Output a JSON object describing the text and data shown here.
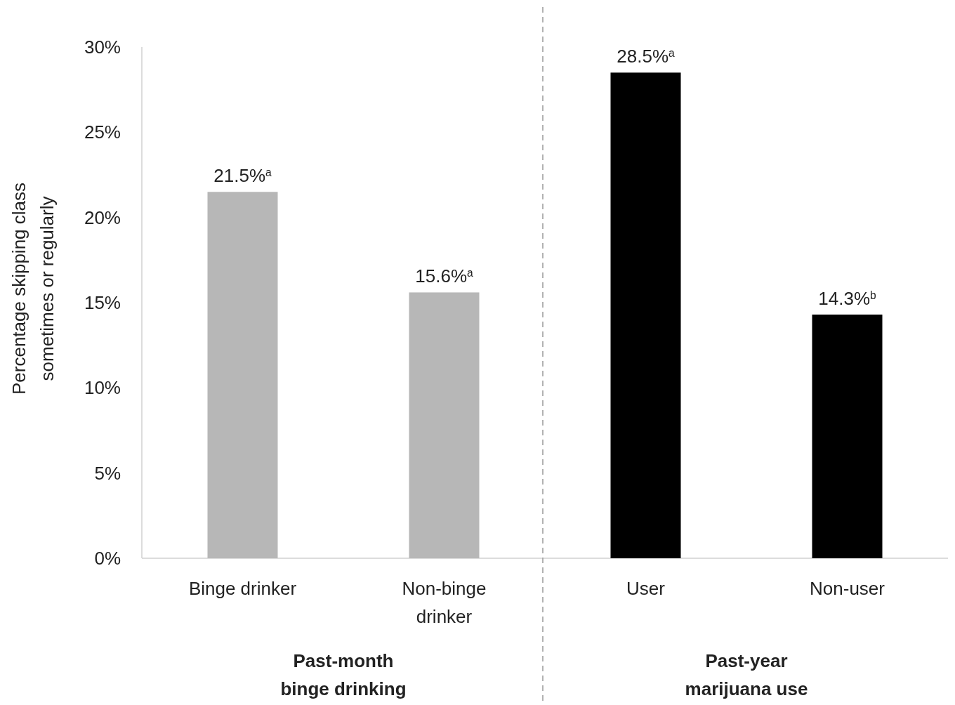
{
  "chart_data": {
    "type": "bar",
    "ylabel": "Percentage skipping class sometimes or regularly",
    "categories": [
      "Binge drinker",
      "Non-binge drinker",
      "User",
      "Non-user"
    ],
    "values": [
      21.5,
      15.6,
      28.5,
      14.3
    ],
    "colors": [
      "#b7b7b7",
      "#b7b7b7",
      "#000000",
      "#000000"
    ],
    "value_labels": [
      "21.5%$^{a}$",
      "15.6%$^{a}$",
      "28.5%$^{a}$",
      "14.3%$^{b}$"
    ],
    "ylim": [
      0,
      30
    ],
    "yticks": [
      {
        "value": 0,
        "label": "0%"
      },
      {
        "value": 5,
        "label": "5%"
      },
      {
        "value": 10,
        "label": "10%"
      },
      {
        "value": 15,
        "label": "15%"
      },
      {
        "value": 20,
        "label": "20%"
      },
      {
        "value": 25,
        "label": "25%"
      },
      {
        "value": 30,
        "label": "30%"
      }
    ],
    "grid": false,
    "annotations": [
      "Past-month binge drinking",
      "Past-year marijuana use"
    ]
  }
}
